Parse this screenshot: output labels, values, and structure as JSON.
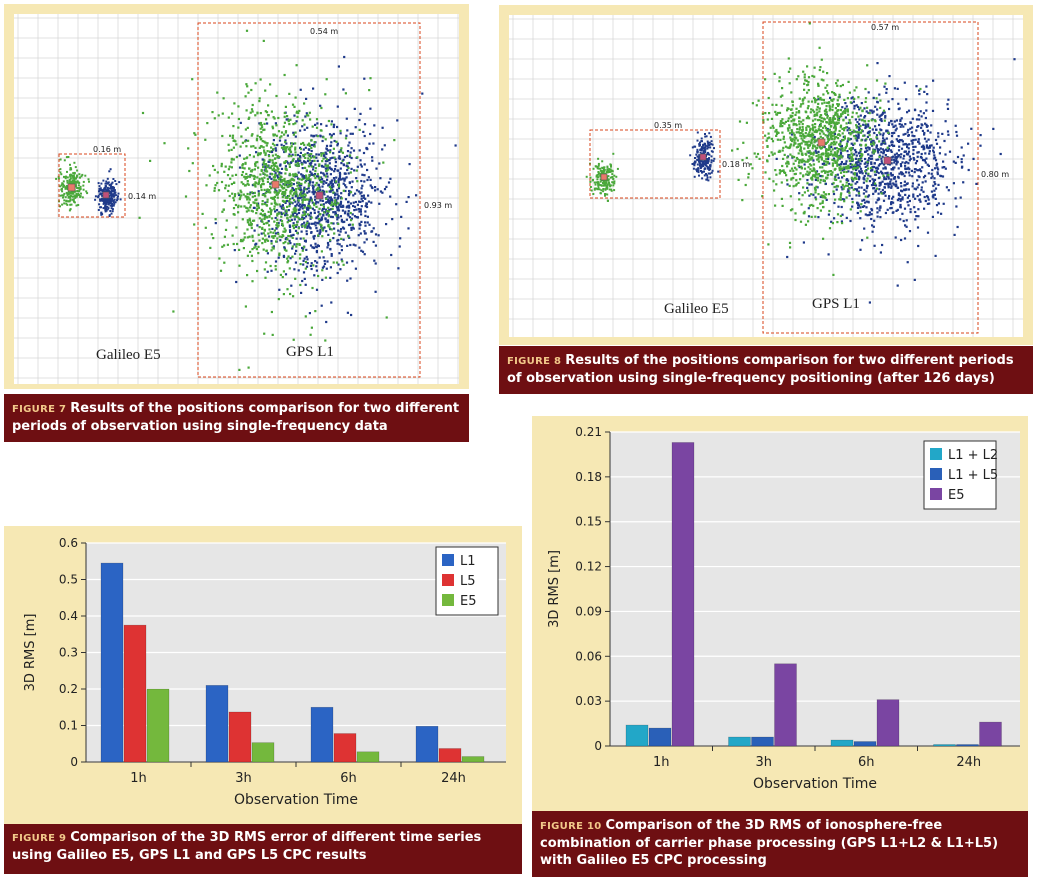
{
  "colors": {
    "green": "#4aa83a",
    "navy": "#1f3a8a",
    "box": "#d9461b",
    "caption_bg": "#6e0f12",
    "cream": "#f6e8b4",
    "L1": "#2b64c4",
    "L5": "#de3333",
    "E5": "#74b83d",
    "L1L2": "#22a7c8",
    "L1L5": "#2a60b8",
    "E5p": "#7a45a2"
  },
  "figure7": {
    "tag": "FIGURE 7",
    "caption": "Results of the positions comparison for two different periods of observation using single-frequency data",
    "labels": {
      "galileo": "Galileo E5",
      "gps": "GPS L1"
    },
    "dims": {
      "d016": "0.16 m",
      "d014": "0.14 m",
      "d054": "0.54 m",
      "d093": "0.93 m"
    }
  },
  "figure8": {
    "tag": "FIGURE 8",
    "caption": "Results of the positions comparison for two different periods of observation using single-frequency positioning (after 126 days)",
    "labels": {
      "galileo": "Galileo E5",
      "gps": "GPS L1"
    },
    "dims": {
      "d035": "0.35 m",
      "d018": "0.18 m",
      "d057": "0.57 m",
      "d080": "0.80 m"
    }
  },
  "figure9": {
    "tag": "FIGURE 9",
    "caption": "Comparison of the 3D RMS error of different time series using Galileo E5, GPS L1 and GPS L5 CPC results"
  },
  "figure10": {
    "tag": "FIGURE 10",
    "caption": "Comparison of the 3D RMS of ionosphere-free combination of carrier phase processing (GPS L1+L2 & L1+L5) with Galileo E5 CPC processing"
  },
  "chart_data": [
    {
      "type": "bar",
      "id": "figure9",
      "title": "",
      "xlabel": "Observation Time",
      "ylabel": "3D RMS [m]",
      "categories": [
        "1h",
        "3h",
        "6h",
        "24h"
      ],
      "ylim": [
        0,
        0.6
      ],
      "yticks": [
        0,
        0.1,
        0.2,
        0.3,
        0.4,
        0.5,
        0.6
      ],
      "ytick_labels": [
        "0",
        "0.1",
        "0.2",
        "0.3",
        "0.4",
        "0.5",
        "0.6"
      ],
      "legend_position": "top-right",
      "grid": true,
      "series": [
        {
          "name": "L1",
          "color": "#2b64c4",
          "values": [
            0.545,
            0.21,
            0.15,
            0.098
          ]
        },
        {
          "name": "L5",
          "color": "#de3333",
          "values": [
            0.375,
            0.137,
            0.078,
            0.037
          ]
        },
        {
          "name": "E5",
          "color": "#74b83d",
          "values": [
            0.2,
            0.053,
            0.028,
            0.015
          ]
        }
      ]
    },
    {
      "type": "bar",
      "id": "figure10",
      "title": "",
      "xlabel": "Observation Time",
      "ylabel": "3D RMS [m]",
      "categories": [
        "1h",
        "3h",
        "6h",
        "24h"
      ],
      "ylim": [
        0,
        0.21
      ],
      "yticks": [
        0,
        0.03,
        0.06,
        0.09,
        0.12,
        0.15,
        0.18,
        0.21
      ],
      "ytick_labels": [
        "0",
        "0.03",
        "0.06",
        "0.09",
        "0.12",
        "0.15",
        "0.18",
        "0.21"
      ],
      "legend_position": "top-right",
      "grid": true,
      "series": [
        {
          "name": "L1 + L2",
          "color": "#22a7c8",
          "values": [
            0.014,
            0.006,
            0.004,
            0.001
          ]
        },
        {
          "name": "L1 + L5",
          "color": "#2a60b8",
          "values": [
            0.012,
            0.006,
            0.003,
            0.001
          ]
        },
        {
          "name": "E5",
          "color": "#7a45a2",
          "values": [
            0.203,
            0.055,
            0.031,
            0.016
          ]
        }
      ]
    }
  ]
}
